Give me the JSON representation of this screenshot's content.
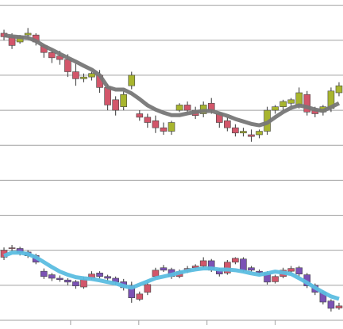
{
  "chart_data": {
    "type": "candlestick",
    "x": [
      0,
      1,
      2,
      3,
      4,
      5,
      6,
      7,
      8,
      9,
      10,
      11,
      12,
      13,
      14,
      15,
      16,
      17,
      18,
      19,
      20,
      21,
      22,
      23,
      24,
      25,
      26,
      27,
      28,
      29,
      30,
      31,
      32,
      33,
      34,
      35,
      36,
      37,
      38,
      39,
      40,
      41,
      42
    ],
    "xlim": [
      -0.5,
      42.5
    ],
    "xticks": [
      8.35,
      16.9,
      25.45,
      34
    ],
    "ylim": [
      -0.25,
      9.15
    ],
    "yticks": [
      0,
      1,
      2,
      3,
      4,
      5,
      6,
      7,
      8,
      9
    ],
    "grid": true,
    "grid_color": "#a0a0a0",
    "series": [
      {
        "up_color": "#a8b52e",
        "down_color": "#d2566a",
        "open": [
          8.2,
          8.1,
          7.95,
          8.15,
          8.15,
          7.85,
          7.65,
          7.55,
          7.45,
          7.1,
          6.9,
          6.95,
          7.0,
          6.65,
          6.3,
          6.1,
          6.7,
          5.9,
          5.8,
          5.7,
          5.5,
          5.4,
          6.0,
          6.15,
          6.0,
          5.9,
          6.2,
          5.9,
          5.7,
          5.5,
          5.35,
          5.3,
          5.3,
          5.4,
          6.0,
          6.1,
          6.2,
          6.15,
          6.45,
          6.0,
          5.95,
          6.05,
          6.5
        ],
        "high": [
          8.3,
          8.2,
          8.15,
          8.35,
          8.2,
          7.9,
          7.75,
          7.7,
          7.6,
          7.35,
          7.05,
          7.1,
          7.15,
          6.75,
          6.4,
          6.55,
          7.1,
          6.0,
          5.9,
          5.85,
          5.65,
          5.7,
          6.2,
          6.25,
          6.1,
          6.25,
          6.35,
          5.95,
          5.8,
          5.6,
          5.5,
          5.45,
          5.45,
          6.1,
          6.15,
          6.3,
          6.35,
          6.65,
          6.55,
          6.1,
          6.15,
          6.65,
          6.8
        ],
        "low": [
          8.0,
          7.75,
          7.9,
          8.05,
          7.85,
          7.5,
          7.35,
          7.3,
          6.95,
          6.7,
          6.8,
          6.85,
          6.5,
          6.0,
          5.85,
          6.0,
          6.6,
          5.7,
          5.5,
          5.35,
          5.3,
          5.3,
          5.95,
          5.9,
          5.75,
          5.8,
          5.9,
          5.5,
          5.4,
          5.25,
          5.25,
          5.1,
          5.2,
          5.3,
          5.9,
          6.0,
          6.1,
          6.05,
          5.85,
          5.8,
          5.85,
          5.95,
          6.4
        ],
        "close": [
          8.1,
          7.85,
          8.1,
          8.2,
          7.95,
          7.65,
          7.5,
          7.45,
          7.1,
          6.9,
          6.95,
          7.05,
          6.65,
          6.15,
          6.0,
          6.45,
          7.0,
          5.8,
          5.65,
          5.5,
          5.4,
          5.65,
          6.15,
          6.0,
          5.85,
          6.15,
          6.0,
          5.65,
          5.5,
          5.35,
          5.4,
          5.25,
          5.4,
          6.0,
          6.1,
          6.25,
          6.3,
          6.5,
          5.95,
          5.9,
          6.1,
          6.55,
          6.7
        ],
        "line_color": "#777777",
        "line": [
          8.14,
          8.11,
          8.09,
          8.07,
          7.98,
          7.84,
          7.73,
          7.61,
          7.5,
          7.39,
          7.27,
          7.16,
          7.0,
          6.66,
          6.59,
          6.59,
          6.48,
          6.32,
          6.14,
          6.02,
          5.93,
          5.86,
          5.86,
          5.91,
          5.95,
          5.98,
          5.98,
          5.91,
          5.84,
          5.75,
          5.68,
          5.61,
          5.57,
          5.64,
          5.8,
          5.95,
          6.07,
          6.14,
          6.09,
          6.02,
          5.98,
          6.09,
          6.2
        ]
      },
      {
        "up_color": "#d2566a",
        "down_color": "#7b52b5",
        "open": [
          1.8,
          2.05,
          2.05,
          1.95,
          1.85,
          1.4,
          1.3,
          1.2,
          1.15,
          1.1,
          0.95,
          1.2,
          1.35,
          1.25,
          1.2,
          1.1,
          1.0,
          0.6,
          0.8,
          1.25,
          1.5,
          1.45,
          1.25,
          1.4,
          1.5,
          1.55,
          1.7,
          1.45,
          1.35,
          1.66,
          1.75,
          1.5,
          1.4,
          1.35,
          1.1,
          1.25,
          1.4,
          1.5,
          1.3,
          1.0,
          0.8,
          0.55,
          0.35
        ],
        "high": [
          2.08,
          2.15,
          2.1,
          2.0,
          1.9,
          1.48,
          1.35,
          1.28,
          1.2,
          1.15,
          1.25,
          1.4,
          1.4,
          1.3,
          1.25,
          1.18,
          1.1,
          0.82,
          1.1,
          1.5,
          1.58,
          1.5,
          1.45,
          1.55,
          1.6,
          1.8,
          1.75,
          1.5,
          1.72,
          1.8,
          1.8,
          1.55,
          1.45,
          1.4,
          1.3,
          1.5,
          1.55,
          1.55,
          1.35,
          1.05,
          0.85,
          0.6,
          0.5
        ],
        "low": [
          1.72,
          1.97,
          1.85,
          1.78,
          1.6,
          1.18,
          1.12,
          1.1,
          1.0,
          0.9,
          0.9,
          1.15,
          1.2,
          1.12,
          1.0,
          0.85,
          0.5,
          0.55,
          0.72,
          1.2,
          1.38,
          1.18,
          1.2,
          1.35,
          1.45,
          1.5,
          1.38,
          1.25,
          1.3,
          1.6,
          1.38,
          1.38,
          1.3,
          1.02,
          1.05,
          1.2,
          1.35,
          1.25,
          0.92,
          0.72,
          0.45,
          0.25,
          0.3
        ],
        "close": [
          2.0,
          2.07,
          1.93,
          1.84,
          1.66,
          1.25,
          1.2,
          1.16,
          1.09,
          0.98,
          1.16,
          1.32,
          1.25,
          1.2,
          1.09,
          0.93,
          0.64,
          0.75,
          1.02,
          1.43,
          1.43,
          1.25,
          1.39,
          1.48,
          1.55,
          1.7,
          1.43,
          1.32,
          1.66,
          1.77,
          1.43,
          1.43,
          1.36,
          1.09,
          1.25,
          1.43,
          1.48,
          1.32,
          0.98,
          0.8,
          0.52,
          0.34,
          0.41
        ],
        "line_color": "#5bbde0",
        "line": [
          1.84,
          1.93,
          1.93,
          1.89,
          1.8,
          1.66,
          1.52,
          1.39,
          1.3,
          1.23,
          1.2,
          1.18,
          1.14,
          1.09,
          1.05,
          0.98,
          0.93,
          1.02,
          1.11,
          1.2,
          1.25,
          1.3,
          1.36,
          1.41,
          1.45,
          1.48,
          1.48,
          1.45,
          1.45,
          1.43,
          1.39,
          1.34,
          1.3,
          1.34,
          1.39,
          1.36,
          1.32,
          1.2,
          1.07,
          0.93,
          0.8,
          0.68,
          0.61
        ]
      }
    ]
  }
}
